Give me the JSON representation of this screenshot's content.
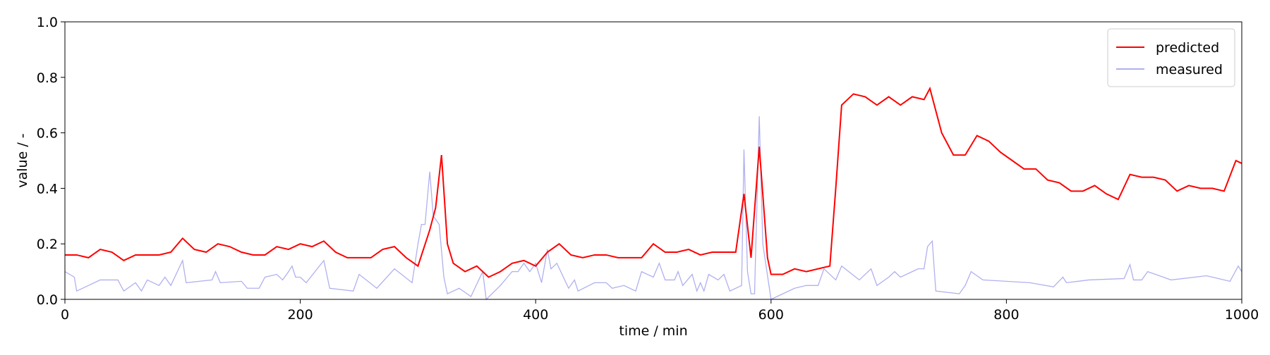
{
  "chart_data": {
    "type": "line",
    "xlabel": "time / min",
    "ylabel": "value / -",
    "xlim": [
      0,
      1000
    ],
    "ylim": [
      0,
      1
    ],
    "xticks": [
      0,
      200,
      400,
      600,
      800,
      1000
    ],
    "yticks": [
      {
        "value": 0,
        "label": "0.0"
      },
      0.2,
      0.4,
      0.6,
      0.8,
      {
        "value": 1,
        "label": "1.0"
      }
    ],
    "legend": "upper right",
    "series": [
      {
        "name": "predicted",
        "color": "#ff0000",
        "x": [
          0,
          10,
          20,
          30,
          40,
          50,
          60,
          70,
          80,
          90,
          100,
          110,
          120,
          130,
          140,
          150,
          160,
          170,
          180,
          190,
          200,
          210,
          220,
          230,
          240,
          250,
          260,
          270,
          280,
          290,
          300,
          310,
          315,
          320,
          325,
          330,
          340,
          350,
          360,
          370,
          380,
          390,
          400,
          410,
          420,
          430,
          440,
          450,
          460,
          470,
          480,
          490,
          500,
          510,
          520,
          530,
          540,
          550,
          560,
          570,
          577,
          583,
          590,
          597,
          600,
          610,
          620,
          630,
          640,
          650,
          655,
          660,
          670,
          680,
          690,
          700,
          710,
          720,
          730,
          735,
          745,
          755,
          765,
          775,
          785,
          795,
          805,
          815,
          825,
          835,
          845,
          855,
          865,
          875,
          885,
          895,
          905,
          915,
          925,
          935,
          945,
          955,
          965,
          975,
          985,
          995,
          1000
        ],
        "values": [
          0.16,
          0.16,
          0.15,
          0.18,
          0.17,
          0.14,
          0.16,
          0.16,
          0.16,
          0.17,
          0.22,
          0.18,
          0.17,
          0.2,
          0.19,
          0.17,
          0.16,
          0.16,
          0.19,
          0.18,
          0.2,
          0.19,
          0.21,
          0.17,
          0.15,
          0.15,
          0.15,
          0.18,
          0.19,
          0.15,
          0.12,
          0.25,
          0.33,
          0.52,
          0.2,
          0.13,
          0.1,
          0.12,
          0.08,
          0.1,
          0.13,
          0.14,
          0.12,
          0.17,
          0.2,
          0.16,
          0.15,
          0.16,
          0.16,
          0.15,
          0.15,
          0.15,
          0.2,
          0.17,
          0.17,
          0.18,
          0.16,
          0.17,
          0.17,
          0.17,
          0.38,
          0.15,
          0.55,
          0.15,
          0.09,
          0.09,
          0.11,
          0.1,
          0.11,
          0.12,
          0.4,
          0.7,
          0.74,
          0.73,
          0.7,
          0.73,
          0.7,
          0.73,
          0.72,
          0.76,
          0.6,
          0.52,
          0.52,
          0.59,
          0.57,
          0.53,
          0.5,
          0.47,
          0.47,
          0.43,
          0.42,
          0.39,
          0.39,
          0.41,
          0.38,
          0.36,
          0.45,
          0.44,
          0.44,
          0.43,
          0.39,
          0.41,
          0.4,
          0.4,
          0.39,
          0.5,
          0.49
        ]
      },
      {
        "name": "measured",
        "color": "#b0b0f0",
        "x": [
          0,
          8,
          10,
          30,
          45,
          50,
          60,
          65,
          70,
          80,
          85,
          90,
          100,
          103,
          125,
          128,
          132,
          150,
          155,
          165,
          170,
          180,
          185,
          190,
          193,
          196,
          200,
          205,
          220,
          225,
          245,
          250,
          265,
          280,
          295,
          300,
          303,
          306,
          310,
          313,
          318,
          322,
          325,
          335,
          345,
          355,
          358,
          370,
          380,
          385,
          390,
          395,
          400,
          405,
          410,
          413,
          418,
          428,
          433,
          436,
          450,
          460,
          465,
          475,
          485,
          490,
          500,
          505,
          510,
          518,
          521,
          525,
          533,
          537,
          540,
          543,
          547,
          555,
          560,
          565,
          575,
          577,
          580,
          583,
          586,
          590,
          593,
          600,
          620,
          630,
          640,
          645,
          650,
          655,
          660,
          675,
          685,
          690,
          700,
          705,
          710,
          720,
          725,
          730,
          733,
          737,
          740,
          760,
          765,
          770,
          780,
          800,
          820,
          840,
          848,
          851,
          870,
          900,
          905,
          908,
          915,
          920,
          940,
          970,
          990,
          997,
          1000
        ],
        "values": [
          0.1,
          0.08,
          0.03,
          0.07,
          0.07,
          0.03,
          0.06,
          0.03,
          0.07,
          0.05,
          0.08,
          0.05,
          0.14,
          0.06,
          0.07,
          0.1,
          0.06,
          0.065,
          0.04,
          0.04,
          0.08,
          0.09,
          0.07,
          0.1,
          0.12,
          0.08,
          0.08,
          0.06,
          0.14,
          0.04,
          0.03,
          0.09,
          0.04,
          0.11,
          0.06,
          0.2,
          0.27,
          0.27,
          0.46,
          0.3,
          0.27,
          0.08,
          0.02,
          0.04,
          0.01,
          0.1,
          0.0,
          0.05,
          0.1,
          0.1,
          0.13,
          0.1,
          0.13,
          0.06,
          0.18,
          0.11,
          0.13,
          0.04,
          0.07,
          0.03,
          0.06,
          0.06,
          0.04,
          0.05,
          0.03,
          0.1,
          0.08,
          0.13,
          0.07,
          0.07,
          0.1,
          0.05,
          0.09,
          0.03,
          0.06,
          0.03,
          0.09,
          0.07,
          0.09,
          0.03,
          0.05,
          0.54,
          0.1,
          0.02,
          0.02,
          0.66,
          0.2,
          0.0,
          0.04,
          0.05,
          0.05,
          0.11,
          0.09,
          0.07,
          0.12,
          0.07,
          0.11,
          0.05,
          0.08,
          0.1,
          0.08,
          0.1,
          0.11,
          0.11,
          0.19,
          0.21,
          0.03,
          0.02,
          0.05,
          0.1,
          0.07,
          0.065,
          0.06,
          0.045,
          0.08,
          0.06,
          0.07,
          0.075,
          0.125,
          0.07,
          0.07,
          0.1,
          0.07,
          0.085,
          0.065,
          0.12,
          0.1
        ]
      }
    ]
  }
}
